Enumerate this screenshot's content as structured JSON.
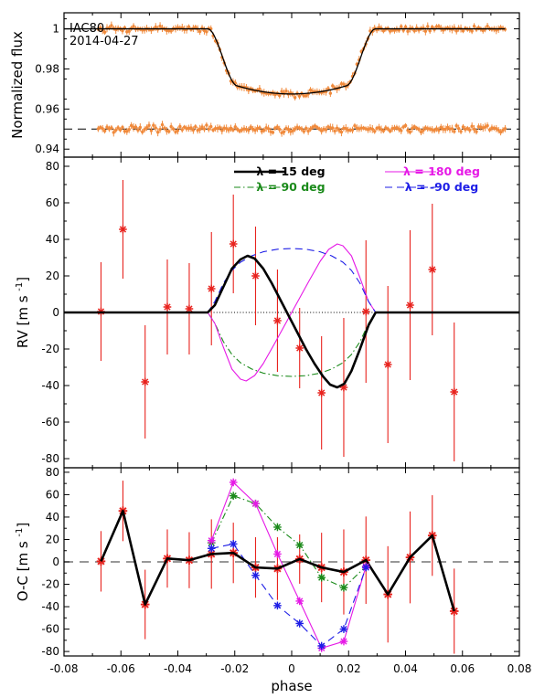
{
  "figure": {
    "xlabel": "phase",
    "x_ticks": [
      "-0.08",
      "-0.06",
      "-0.04",
      "-0.02",
      "0",
      "0.02",
      "0.04",
      "0.06",
      "0.08"
    ]
  },
  "chart_data": [
    {
      "type": "scatter",
      "panel": "photometry",
      "ylabel": "Normalized flux",
      "annotations": [
        "IAC80",
        "2014-04-27"
      ],
      "xlim": [
        -0.08,
        0.08
      ],
      "ylim": [
        0.936,
        1.008
      ],
      "yticks": [
        0.94,
        0.96,
        0.98,
        1.0
      ],
      "ytick_labels": [
        "0.94",
        "0.96",
        "0.98",
        "1"
      ],
      "colors": {
        "data": "#f08a3c",
        "model": "#000000"
      },
      "transit_model": {
        "depth": 0.0325,
        "contact_x": [
          -0.0295,
          -0.019,
          0.019,
          0.0295
        ],
        "limb_curvature": 0.004
      },
      "residual_offset": 0.95,
      "series": [
        {
          "name": "flux",
          "x_range": [
            -0.068,
            0.075
          ],
          "n_points": 185,
          "scatter_sigma": 0.0011,
          "note": "normalized flux following the transit model"
        },
        {
          "name": "residuals",
          "x_range": [
            -0.068,
            0.075
          ],
          "n_points": 185,
          "scatter_sigma": 0.0011,
          "note": "residuals offset to 0.95"
        }
      ]
    },
    {
      "type": "line",
      "panel": "rv",
      "ylabel": "RV [m s -1]",
      "xlim": [
        -0.08,
        0.08
      ],
      "ylim": [
        -85,
        85
      ],
      "yticks": [
        -80,
        -60,
        -40,
        -20,
        0,
        20,
        40,
        60,
        80
      ],
      "colors": {
        "data": "#e8231e",
        "lam15": "#000000",
        "lam90": "#1a8a1a",
        "lam180": "#e619e6",
        "lamm90": "#1e1ee6"
      },
      "legend": [
        {
          "key": "lam15",
          "text": "λ = 15 deg"
        },
        {
          "key": "lam180",
          "text": "λ = 180 deg"
        },
        {
          "key": "lam90",
          "text": "λ = 90 deg"
        },
        {
          "key": "lamm90",
          "text": "λ = -90 deg"
        }
      ],
      "points": [
        {
          "x": -0.067,
          "y": 0.5,
          "err": 27
        },
        {
          "x": -0.0593,
          "y": 45.5,
          "err": 27
        },
        {
          "x": -0.0515,
          "y": -38,
          "err": 31
        },
        {
          "x": -0.0437,
          "y": 3,
          "err": 26
        },
        {
          "x": -0.036,
          "y": 2,
          "err": 25
        },
        {
          "x": -0.0282,
          "y": 13,
          "err": 31
        },
        {
          "x": -0.0205,
          "y": 37.5,
          "err": 27
        },
        {
          "x": -0.0127,
          "y": 20,
          "err": 27
        },
        {
          "x": -0.005,
          "y": -4.5,
          "err": 28
        },
        {
          "x": 0.0028,
          "y": -19.5,
          "err": 22
        },
        {
          "x": 0.0105,
          "y": -44,
          "err": 31
        },
        {
          "x": 0.0183,
          "y": -41,
          "err": 38
        },
        {
          "x": 0.0261,
          "y": 0.5,
          "err": 39
        },
        {
          "x": 0.0338,
          "y": -28.5,
          "err": 43
        },
        {
          "x": 0.0416,
          "y": 4,
          "err": 41
        },
        {
          "x": 0.0494,
          "y": 23.5,
          "err": 36
        },
        {
          "x": 0.0571,
          "y": -43.5,
          "err": 38
        }
      ],
      "models": {
        "lam15": [
          [
            -0.08,
            0
          ],
          [
            -0.0295,
            0
          ],
          [
            -0.027,
            4
          ],
          [
            -0.024,
            14
          ],
          [
            -0.021,
            24
          ],
          [
            -0.018,
            29
          ],
          [
            -0.0155,
            31
          ],
          [
            -0.013,
            29.5
          ],
          [
            -0.01,
            24
          ],
          [
            -0.007,
            16
          ],
          [
            -0.004,
            7
          ],
          [
            -0.001,
            -2
          ],
          [
            0.002,
            -11
          ],
          [
            0.005,
            -20
          ],
          [
            0.008,
            -28
          ],
          [
            0.011,
            -35
          ],
          [
            0.0135,
            -39.5
          ],
          [
            0.016,
            -41
          ],
          [
            0.0185,
            -39
          ],
          [
            0.021,
            -32
          ],
          [
            0.024,
            -20
          ],
          [
            0.027,
            -7
          ],
          [
            0.0295,
            0
          ],
          [
            0.08,
            0
          ]
        ],
        "lam90": [
          [
            -0.08,
            0
          ],
          [
            -0.0295,
            0
          ],
          [
            -0.027,
            -6
          ],
          [
            -0.024,
            -16
          ],
          [
            -0.021,
            -23
          ],
          [
            -0.018,
            -27.5
          ],
          [
            -0.014,
            -31
          ],
          [
            -0.01,
            -33.2
          ],
          [
            -0.005,
            -34.6
          ],
          [
            0.0,
            -35
          ],
          [
            0.005,
            -34.6
          ],
          [
            0.01,
            -33.2
          ],
          [
            0.014,
            -31
          ],
          [
            0.018,
            -27.5
          ],
          [
            0.021,
            -23
          ],
          [
            0.024,
            -16
          ],
          [
            0.027,
            -6
          ],
          [
            0.0295,
            0
          ],
          [
            0.08,
            0
          ]
        ],
        "lam180": [
          [
            -0.08,
            0
          ],
          [
            -0.0295,
            0
          ],
          [
            -0.027,
            -6
          ],
          [
            -0.024,
            -19
          ],
          [
            -0.021,
            -31
          ],
          [
            -0.018,
            -36.5
          ],
          [
            -0.016,
            -37.5
          ],
          [
            -0.013,
            -34.5
          ],
          [
            -0.01,
            -28
          ],
          [
            -0.006,
            -17
          ],
          [
            -0.003,
            -8.5
          ],
          [
            0.0,
            0
          ],
          [
            0.003,
            8.5
          ],
          [
            0.006,
            17
          ],
          [
            0.01,
            28
          ],
          [
            0.013,
            34.5
          ],
          [
            0.016,
            37.5
          ],
          [
            0.018,
            36.5
          ],
          [
            0.021,
            31
          ],
          [
            0.024,
            19
          ],
          [
            0.027,
            6
          ],
          [
            0.0295,
            0
          ],
          [
            0.08,
            0
          ]
        ],
        "lamm90": [
          [
            -0.08,
            0
          ],
          [
            -0.0295,
            0
          ],
          [
            -0.027,
            6
          ],
          [
            -0.024,
            16
          ],
          [
            -0.021,
            23
          ],
          [
            -0.018,
            27.5
          ],
          [
            -0.014,
            31
          ],
          [
            -0.01,
            33.2
          ],
          [
            -0.005,
            34.6
          ],
          [
            0.0,
            35
          ],
          [
            0.005,
            34.6
          ],
          [
            0.01,
            33.2
          ],
          [
            0.014,
            31
          ],
          [
            0.018,
            27.5
          ],
          [
            0.021,
            23
          ],
          [
            0.024,
            16
          ],
          [
            0.027,
            6
          ],
          [
            0.0295,
            0
          ],
          [
            0.08,
            0
          ]
        ]
      }
    },
    {
      "type": "line",
      "panel": "oc",
      "ylabel": "O-C [m s -1]",
      "xlim": [
        -0.08,
        0.08
      ],
      "ylim": [
        -84,
        84
      ],
      "yticks": [
        -80,
        -60,
        -40,
        -20,
        0,
        20,
        40,
        60,
        80
      ],
      "colors": {
        "data": "#e8231e",
        "lam15": "#000000",
        "lam90": "#1a8a1a",
        "lam180": "#e619e6",
        "lamm90": "#1e1ee6"
      },
      "points": [
        {
          "x": -0.067,
          "y": 0.5,
          "err": 27
        },
        {
          "x": -0.0593,
          "y": 45.5,
          "err": 27
        },
        {
          "x": -0.0515,
          "y": -38,
          "err": 31
        },
        {
          "x": -0.0437,
          "y": 3,
          "err": 26
        },
        {
          "x": -0.036,
          "y": 1.5,
          "err": 25
        },
        {
          "x": -0.0282,
          "y": 7,
          "err": 31
        },
        {
          "x": -0.0205,
          "y": 8,
          "err": 27
        },
        {
          "x": -0.0127,
          "y": -5,
          "err": 27
        },
        {
          "x": -0.005,
          "y": -6,
          "err": 28
        },
        {
          "x": 0.0028,
          "y": 2.5,
          "err": 22
        },
        {
          "x": 0.0105,
          "y": -5,
          "err": 31
        },
        {
          "x": 0.0183,
          "y": -9,
          "err": 38
        },
        {
          "x": 0.0261,
          "y": 1.5,
          "err": 39
        },
        {
          "x": 0.0338,
          "y": -29,
          "err": 43
        },
        {
          "x": 0.0416,
          "y": 4,
          "err": 41
        },
        {
          "x": 0.0494,
          "y": 23.5,
          "err": 36
        },
        {
          "x": 0.0571,
          "y": -44,
          "err": 38
        }
      ],
      "series": [
        {
          "key": "lam90",
          "x": [
            -0.0282,
            -0.0205,
            -0.0127,
            -0.005,
            0.0028,
            0.0105,
            0.0183,
            0.0261
          ],
          "y": [
            17,
            59,
            52,
            31,
            15,
            -14,
            -23,
            -4
          ]
        },
        {
          "key": "lam180",
          "x": [
            -0.0282,
            -0.0205,
            -0.0127,
            -0.005,
            0.0028,
            0.0105,
            0.0183,
            0.0261
          ],
          "y": [
            19,
            71,
            52,
            7,
            -35,
            -77,
            -71,
            -4
          ]
        },
        {
          "key": "lamm90",
          "x": [
            -0.0282,
            -0.0205,
            -0.0127,
            -0.005,
            0.0028,
            0.0105,
            0.0183,
            0.0261
          ],
          "y": [
            12,
            16,
            -12,
            -39,
            -55,
            -75,
            -60,
            -5
          ]
        }
      ]
    }
  ]
}
